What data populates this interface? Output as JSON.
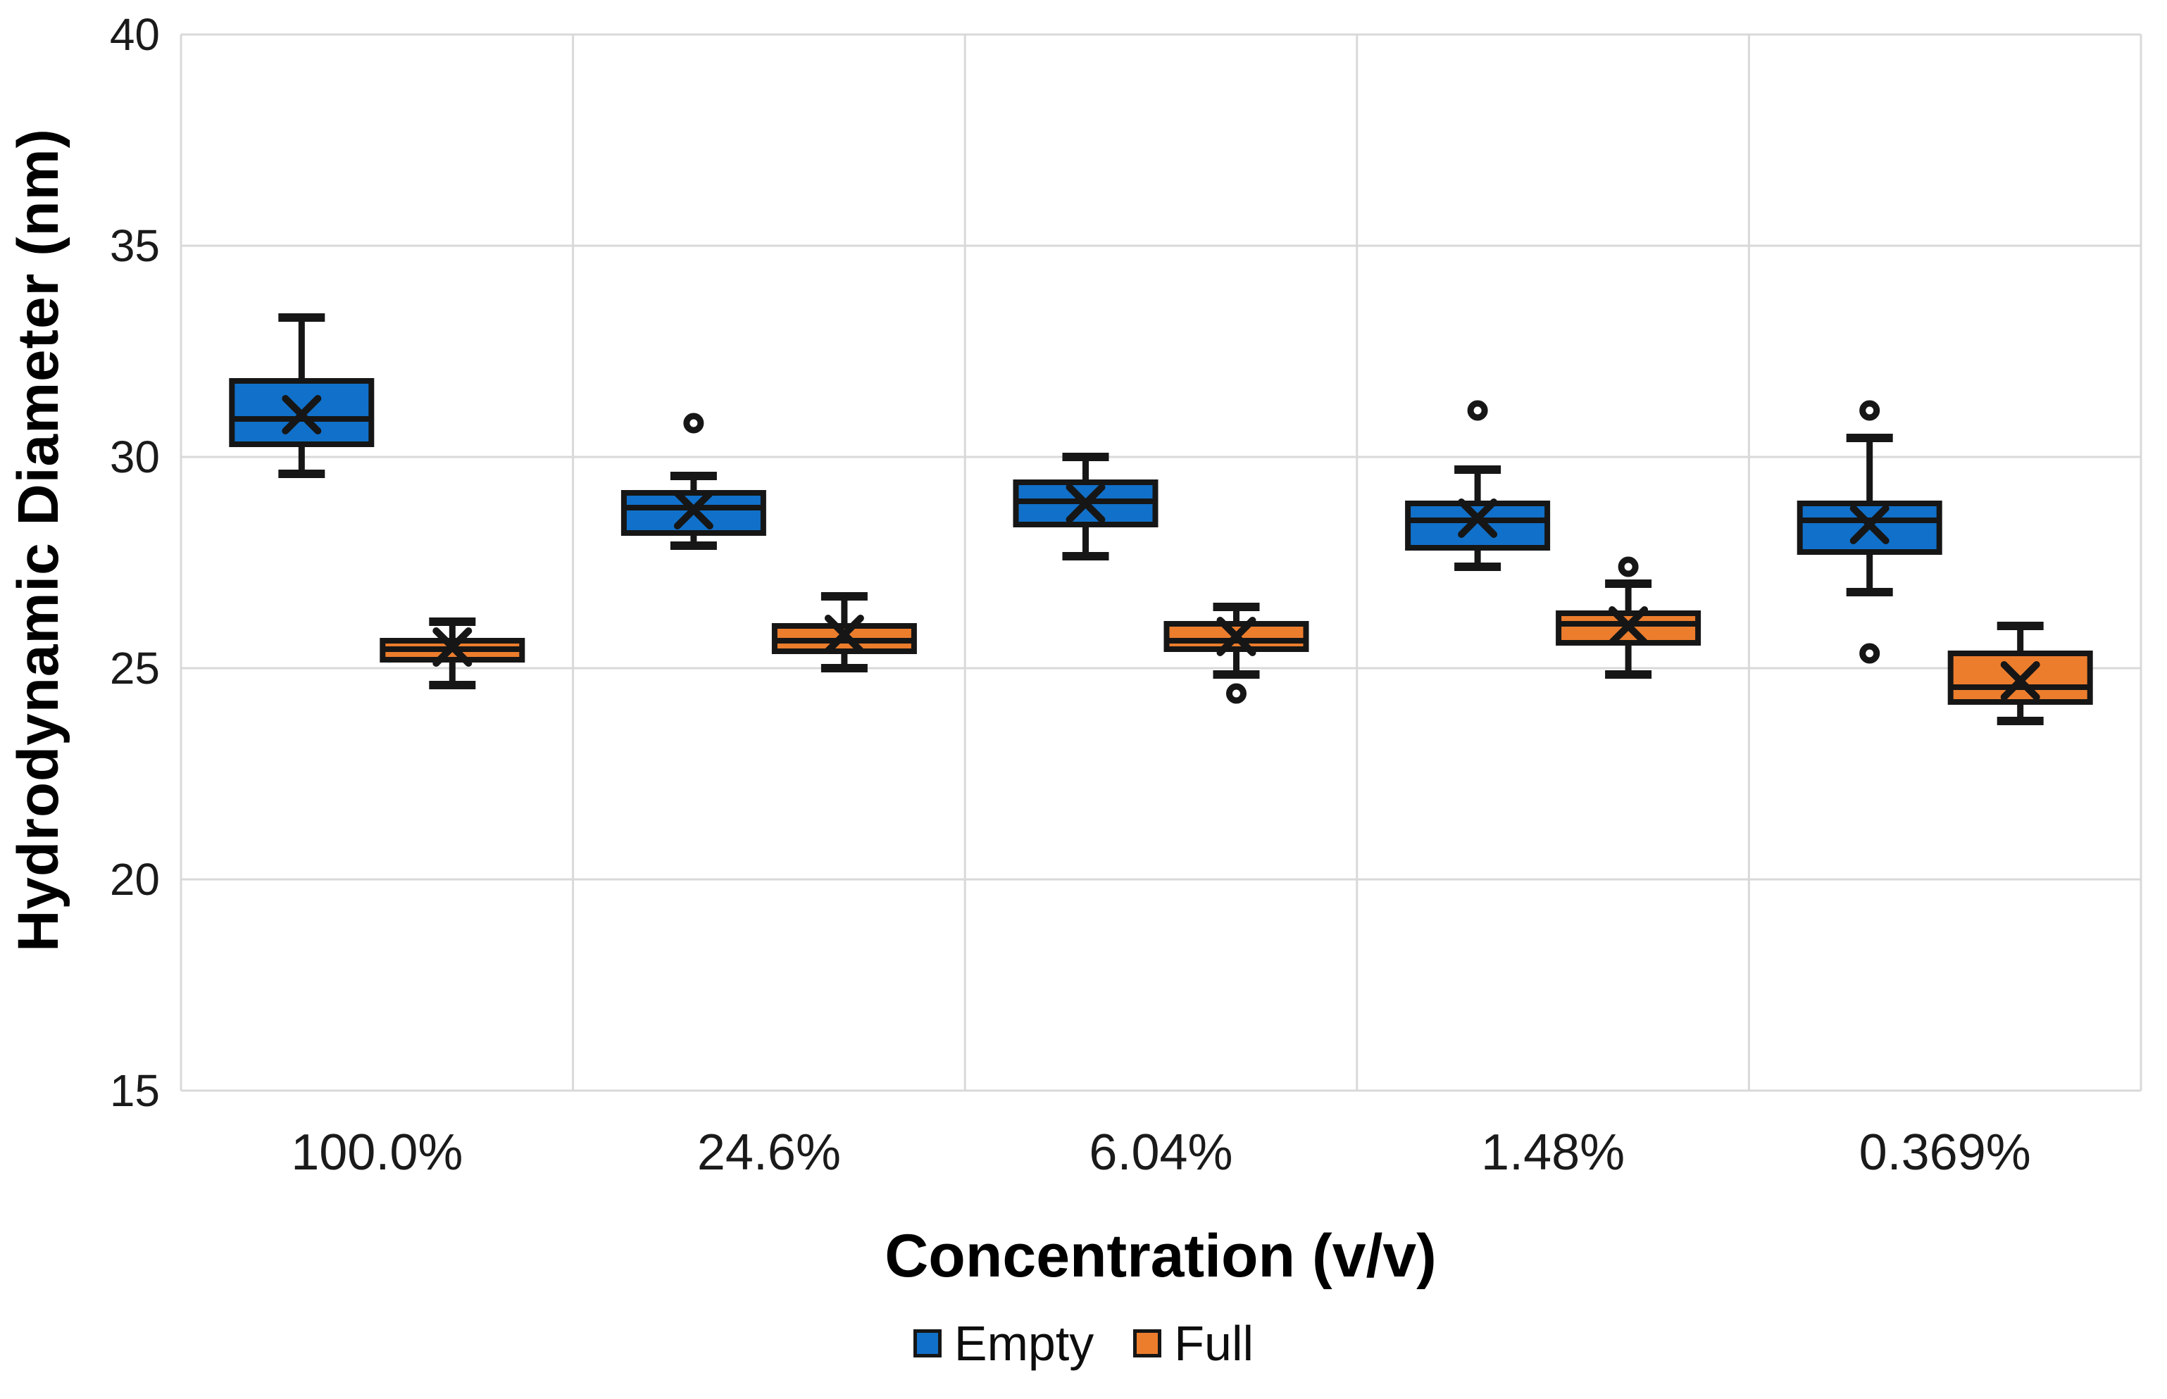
{
  "chart_data": {
    "type": "boxplot",
    "title": "",
    "xlabel": "Concentration (v/v)",
    "ylabel": "Hydrodynamic Diameter (nm)",
    "ylim": [
      15,
      40
    ],
    "yticks": [
      40,
      35,
      30,
      25,
      20,
      15
    ],
    "categories": [
      "100.0%",
      "24.6%",
      "6.04%",
      "1.48%",
      "0.369%"
    ],
    "grid": true,
    "legend_position": "bottom",
    "legend": [
      {
        "name": "Empty",
        "color": "#1170C9"
      },
      {
        "name": "Full",
        "color": "#EC7D2D"
      }
    ],
    "series": [
      {
        "name": "Empty",
        "color": "#1170C9",
        "boxes": [
          {
            "category": "100.0%",
            "min": 29.6,
            "q1": 30.3,
            "median": 30.9,
            "mean": 31.0,
            "q3": 31.8,
            "max": 33.3,
            "outliers": []
          },
          {
            "category": "24.6%",
            "min": 27.9,
            "q1": 28.2,
            "median": 28.8,
            "mean": 28.75,
            "q3": 29.15,
            "max": 29.55,
            "outliers": [
              30.8
            ]
          },
          {
            "category": "6.04%",
            "min": 27.65,
            "q1": 28.4,
            "median": 28.95,
            "mean": 28.9,
            "q3": 29.4,
            "max": 30.0,
            "outliers": []
          },
          {
            "category": "1.48%",
            "min": 27.4,
            "q1": 27.85,
            "median": 28.5,
            "mean": 28.55,
            "q3": 28.9,
            "max": 29.7,
            "outliers": [
              31.1
            ]
          },
          {
            "category": "0.369%",
            "min": 26.8,
            "q1": 27.75,
            "median": 28.5,
            "mean": 28.4,
            "q3": 28.9,
            "max": 30.45,
            "outliers": [
              31.1,
              25.35
            ]
          }
        ]
      },
      {
        "name": "Full",
        "color": "#EC7D2D",
        "boxes": [
          {
            "category": "100.0%",
            "min": 24.6,
            "q1": 25.2,
            "median": 25.45,
            "mean": 25.5,
            "q3": 25.65,
            "max": 26.1,
            "outliers": []
          },
          {
            "category": "24.6%",
            "min": 25.0,
            "q1": 25.4,
            "median": 25.65,
            "mean": 25.8,
            "q3": 26.0,
            "max": 26.7,
            "outliers": []
          },
          {
            "category": "6.04%",
            "min": 24.85,
            "q1": 25.45,
            "median": 25.65,
            "mean": 25.75,
            "q3": 26.05,
            "max": 26.45,
            "outliers": [
              24.4
            ]
          },
          {
            "category": "1.48%",
            "min": 24.85,
            "q1": 25.6,
            "median": 26.05,
            "mean": 26.0,
            "q3": 26.3,
            "max": 27.0,
            "outliers": [
              27.4
            ]
          },
          {
            "category": "0.369%",
            "min": 23.75,
            "q1": 24.2,
            "median": 24.55,
            "mean": 24.7,
            "q3": 25.35,
            "max": 26.0,
            "outliers": []
          }
        ]
      }
    ],
    "colors": {
      "grid": "#d9d9d9",
      "stroke": "#161616",
      "background": "#ffffff"
    }
  }
}
